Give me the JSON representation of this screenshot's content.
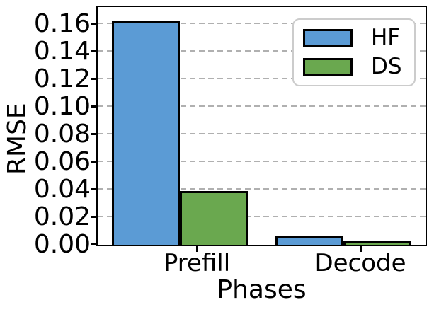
{
  "chart_data": {
    "type": "bar",
    "title": "",
    "xlabel": "Phases",
    "ylabel": "RMSE",
    "categories": [
      "Prefill",
      "Decode"
    ],
    "series": [
      {
        "name": "HF",
        "color": "#5B9BD5",
        "values": [
          0.163,
          0.006
        ]
      },
      {
        "name": "DS",
        "color": "#6AA84F",
        "values": [
          0.039,
          0.003
        ]
      }
    ],
    "bar_edge_color": "#000000",
    "ylim": [
      0,
      0.172
    ],
    "yticks": [
      0.0,
      0.02,
      0.04,
      0.06,
      0.08,
      0.1,
      0.12,
      0.14,
      0.16
    ],
    "ytick_labels": [
      "0.00",
      "0.02",
      "0.04",
      "0.06",
      "0.08",
      "0.10",
      "0.12",
      "0.14",
      "0.16"
    ],
    "grid": "horizontal-dashed",
    "grid_color": "#b0b0b0",
    "legend": {
      "position": "upper-right",
      "entries": [
        "HF",
        "DS"
      ]
    }
  }
}
